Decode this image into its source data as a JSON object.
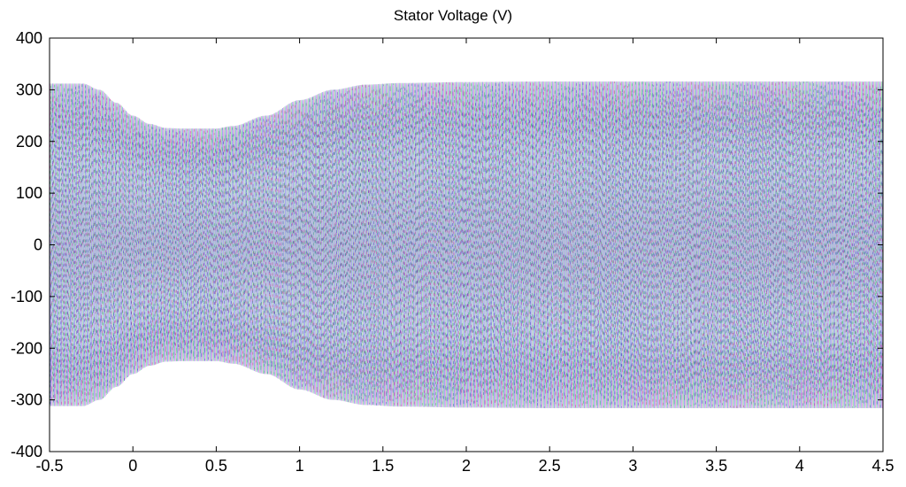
{
  "chart_data": {
    "type": "line",
    "title": "Stator Voltage (V)",
    "xlabel": "",
    "ylabel": "",
    "xlim": [
      -0.5,
      4.5
    ],
    "ylim": [
      -400,
      400
    ],
    "grid": false,
    "legend": "none",
    "xticks": [
      "-0.5",
      "0",
      "0.5",
      "1",
      "1.5",
      "2",
      "2.5",
      "3",
      "3.5",
      "4",
      "4.5"
    ],
    "yticks": [
      "400",
      "300",
      "200",
      "100",
      "0",
      "-100",
      "-200",
      "-300",
      "-400"
    ],
    "phases": 3,
    "envelope": {
      "t": [
        -0.5,
        -0.3,
        -0.2,
        -0.1,
        0.0,
        0.1,
        0.2,
        0.3,
        0.5,
        0.6,
        0.8,
        1.0,
        1.2,
        1.4,
        1.6,
        2.0,
        2.5,
        3.0,
        4.5
      ],
      "amplitude": [
        312,
        312,
        300,
        275,
        250,
        234,
        226,
        225,
        225,
        230,
        250,
        280,
        300,
        310,
        313,
        315,
        316,
        316,
        316
      ]
    },
    "series_colors": [
      "#e6a6e6",
      "#a6e6b6",
      "#a6a6f0"
    ],
    "dark_colors": [
      "#c02080",
      "#20a060",
      "#3030b0"
    ]
  }
}
